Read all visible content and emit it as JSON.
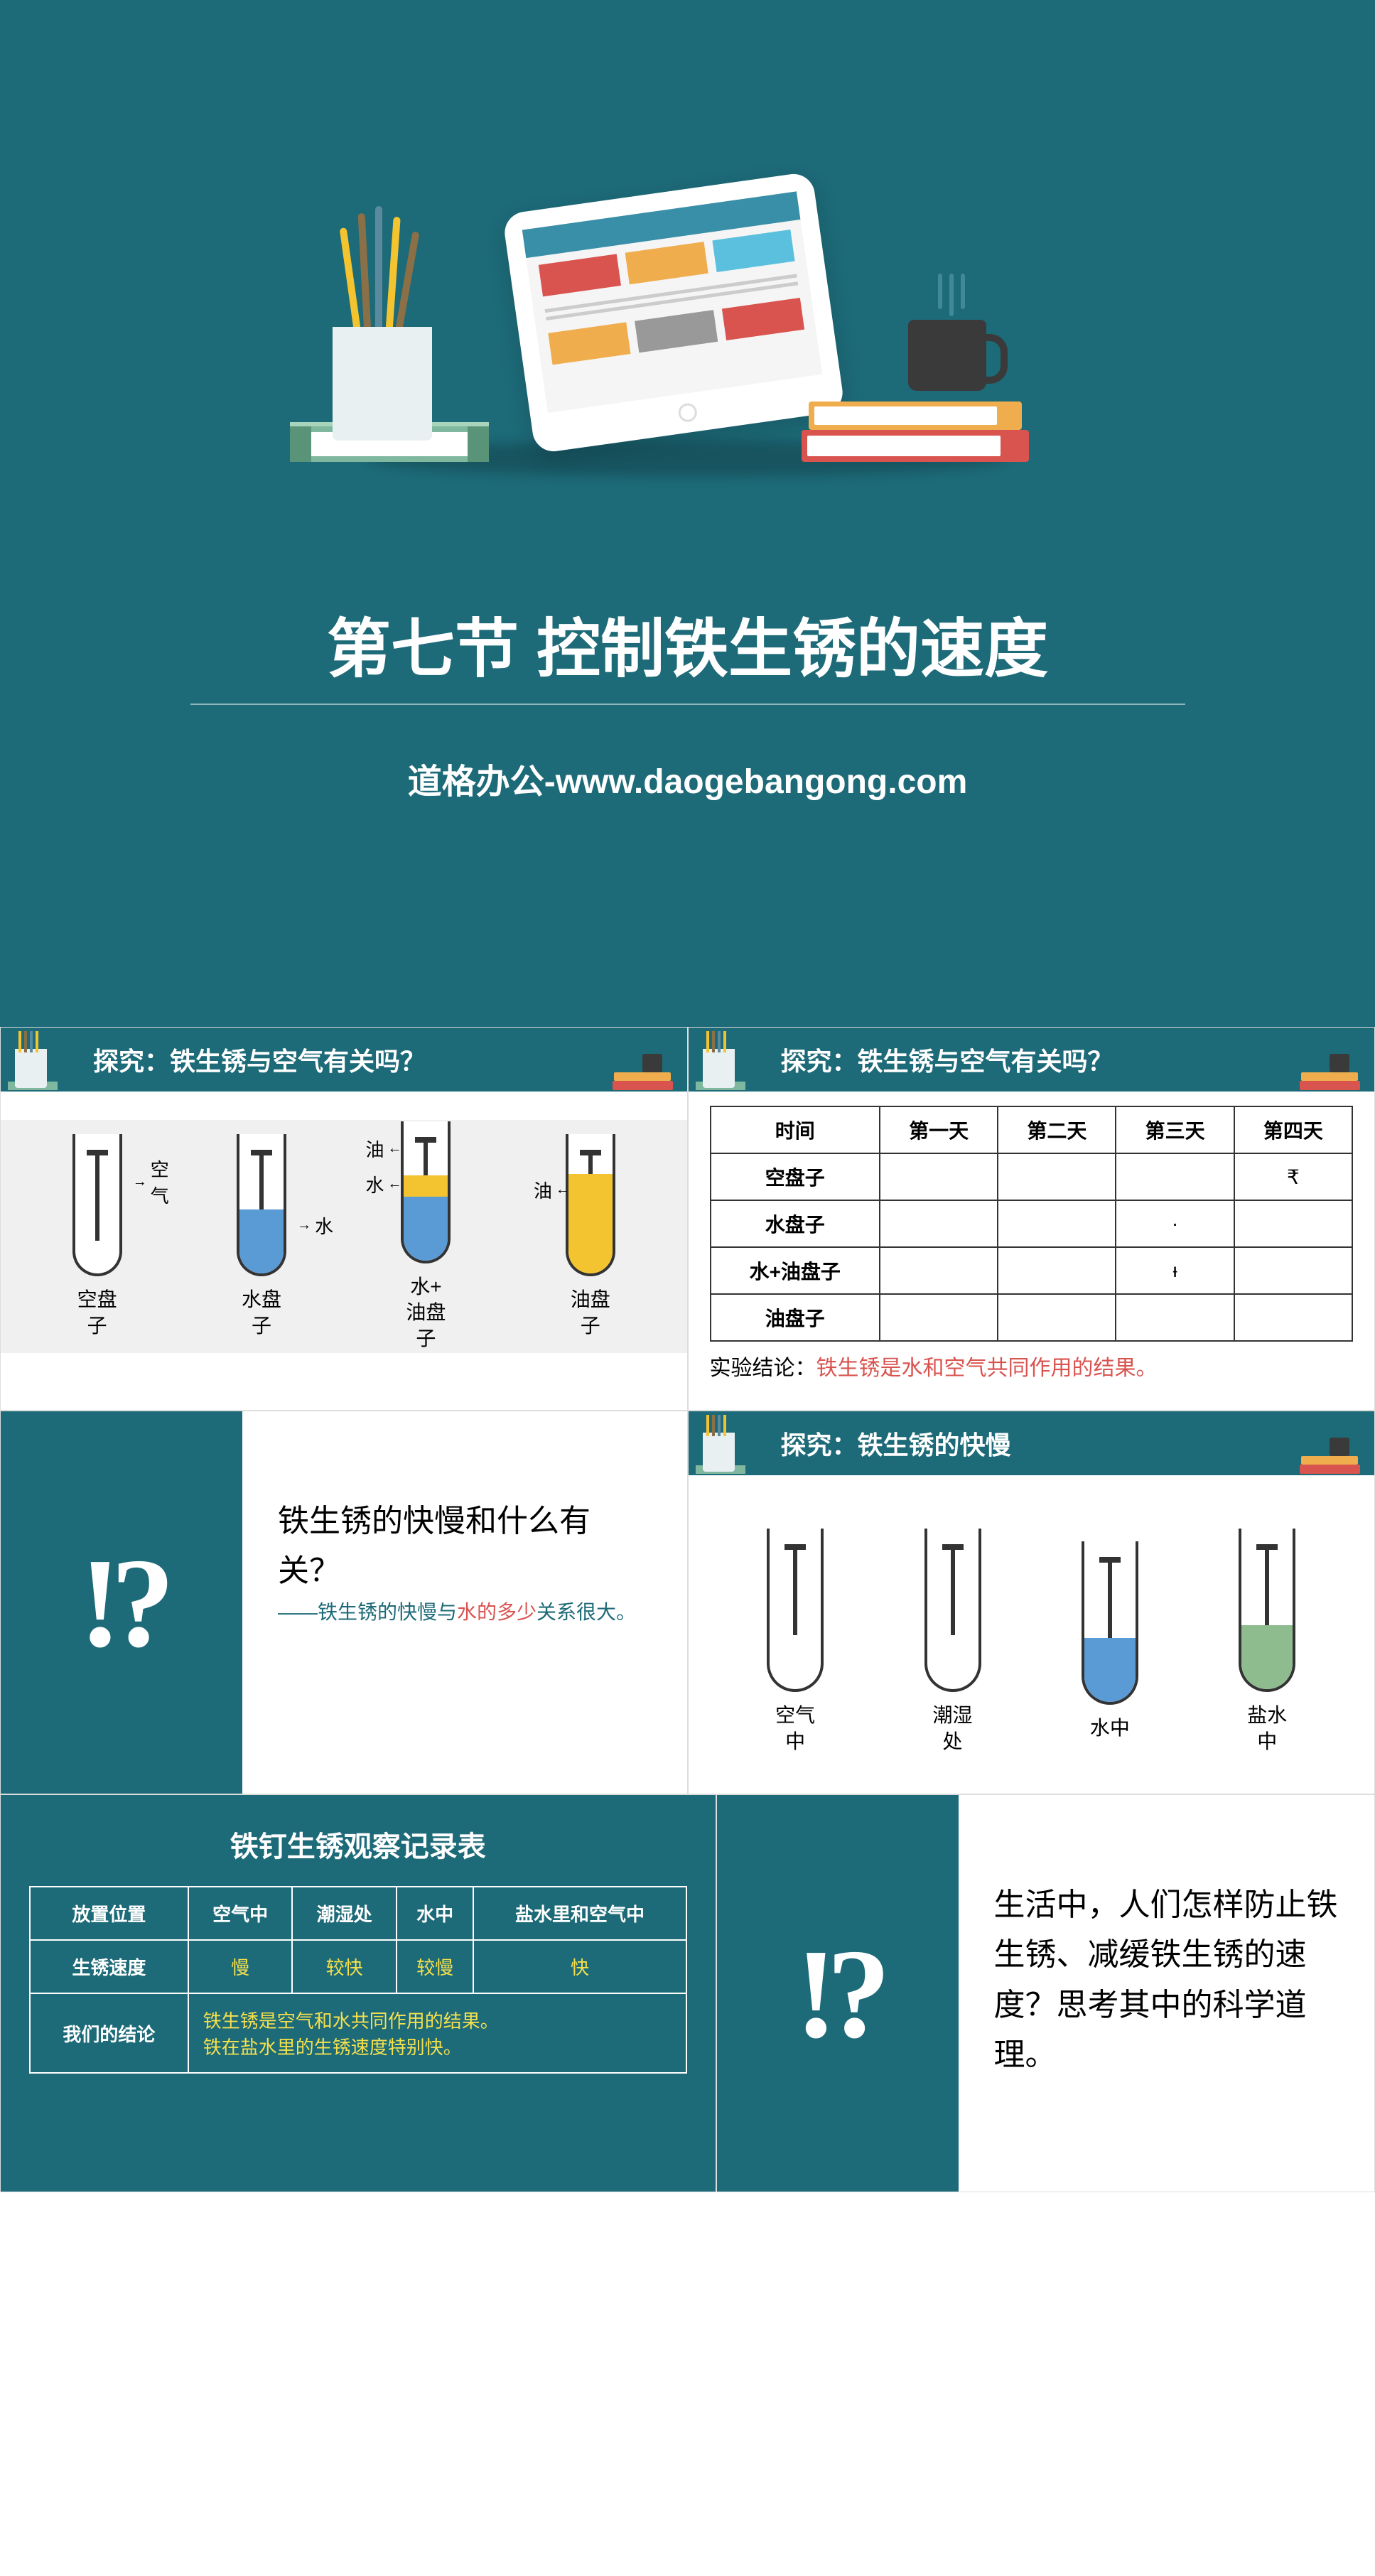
{
  "hero": {
    "title": "第七节  控制铁生锈的速度",
    "subtitle": "道格办公-www.daogebangong.com"
  },
  "panel1": {
    "title": "探究：铁生锈与空气有关吗？",
    "tubes": [
      {
        "label": "空盘子",
        "labels": [
          {
            "text": "空气",
            "cls": "al1"
          }
        ]
      },
      {
        "label": "水盘子",
        "fill": "water",
        "labels": [
          {
            "text": "水",
            "cls": "al2"
          }
        ]
      },
      {
        "label": "水+油盘子",
        "fill": "water",
        "top": "oil",
        "labels": [
          {
            "text": "油",
            "cls": "al3 arrow-l"
          },
          {
            "text": "水",
            "cls": "al4 arrow-l"
          }
        ]
      },
      {
        "label": "油盘子",
        "fill": "oil",
        "labels": [
          {
            "text": "油",
            "cls": "al5 arrow-l"
          }
        ]
      }
    ]
  },
  "panel2": {
    "title": "探究：铁生锈与空气有关吗？",
    "headers": [
      "时间",
      "第一天",
      "第二天",
      "第三天",
      "第四天"
    ],
    "rows": [
      [
        "空盘子",
        "",
        "",
        "",
        "₹"
      ],
      [
        "水盘子",
        "",
        "",
        "·",
        ""
      ],
      [
        "水+油盘子",
        "",
        "",
        "ᵻ",
        ""
      ],
      [
        "油盘子",
        "",
        "",
        "",
        ""
      ]
    ],
    "conclusion_label": "实验结论：",
    "conclusion_text": "铁生锈是水和空气共同作用的结果。"
  },
  "panel3": {
    "question": "铁生锈的快慢和什么有关？",
    "hint_pre": "——铁生锈的快慢与",
    "hint_red": "水的多少",
    "hint_post": "关系很大。"
  },
  "panel4": {
    "title": "探究：铁生锈的快慢",
    "tubes": [
      {
        "label": "空气中"
      },
      {
        "label": "潮湿处"
      },
      {
        "label": "水中",
        "fill": "water"
      },
      {
        "label": "盐水中",
        "fill": "green"
      }
    ]
  },
  "panel5": {
    "title": "铁钉生锈观察记录表",
    "headers": [
      "放置位置",
      "空气中",
      "潮湿处",
      "水中",
      "盐水里和空气中"
    ],
    "row2": [
      "生锈速度",
      "慢",
      "较快",
      "较慢",
      "快"
    ],
    "row3_label": "我们的结论",
    "row3_text1": "铁生锈是空气和水共同作用的结果。",
    "row3_text2": "铁在盐水里的生锈速度特别快。"
  },
  "panel6": {
    "text": "生活中，人们怎样防止铁生锈、减缓铁生锈的速度？思考其中的科学道理。"
  },
  "colors": {
    "teal": "#1d6a78",
    "red": "#d9534f",
    "yellow": "#f4e04d"
  }
}
